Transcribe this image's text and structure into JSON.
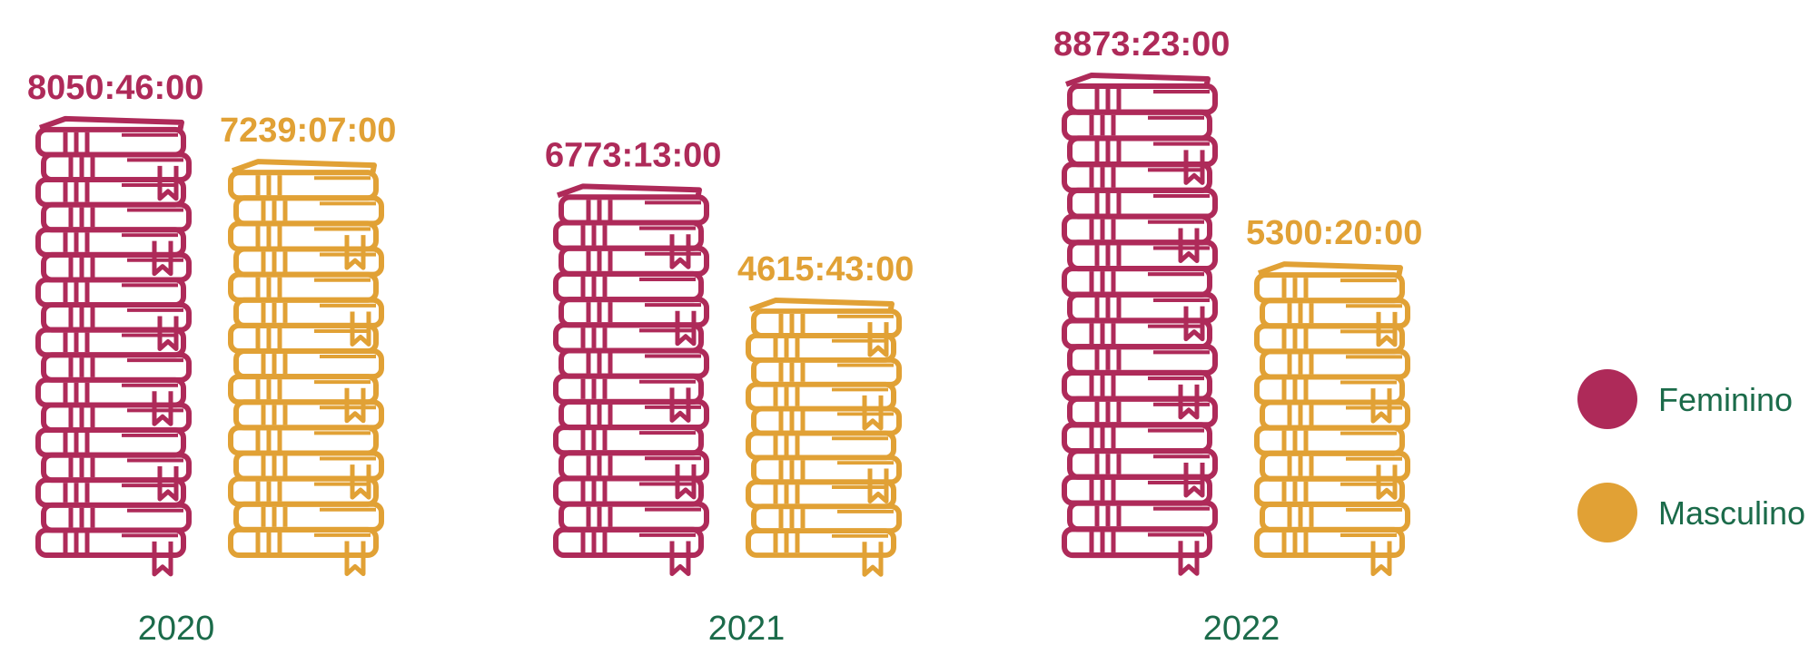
{
  "colors": {
    "feminino": "#AE2A59",
    "masculino": "#E1A135",
    "text_green": "#1B6B4A"
  },
  "chart_data": {
    "type": "bar",
    "categories": [
      "2020",
      "2021",
      "2022"
    ],
    "series": [
      {
        "name": "Feminino",
        "values": [
          8050.77,
          6773.22,
          8873.38
        ],
        "labels": [
          "8050:46:00",
          "6773:13:00",
          "8873:23:00"
        ]
      },
      {
        "name": "Masculino",
        "values": [
          7239.12,
          4615.72,
          5300.33
        ],
        "labels": [
          "7239:07:00",
          "4615:43:00",
          "5300:20:00"
        ]
      }
    ],
    "legend": {
      "position": "right",
      "entries": [
        "Feminino",
        "Masculino"
      ]
    },
    "mark": "stacked-books-icon",
    "title": "",
    "xlabel": "",
    "ylabel": "",
    "grid": false
  }
}
